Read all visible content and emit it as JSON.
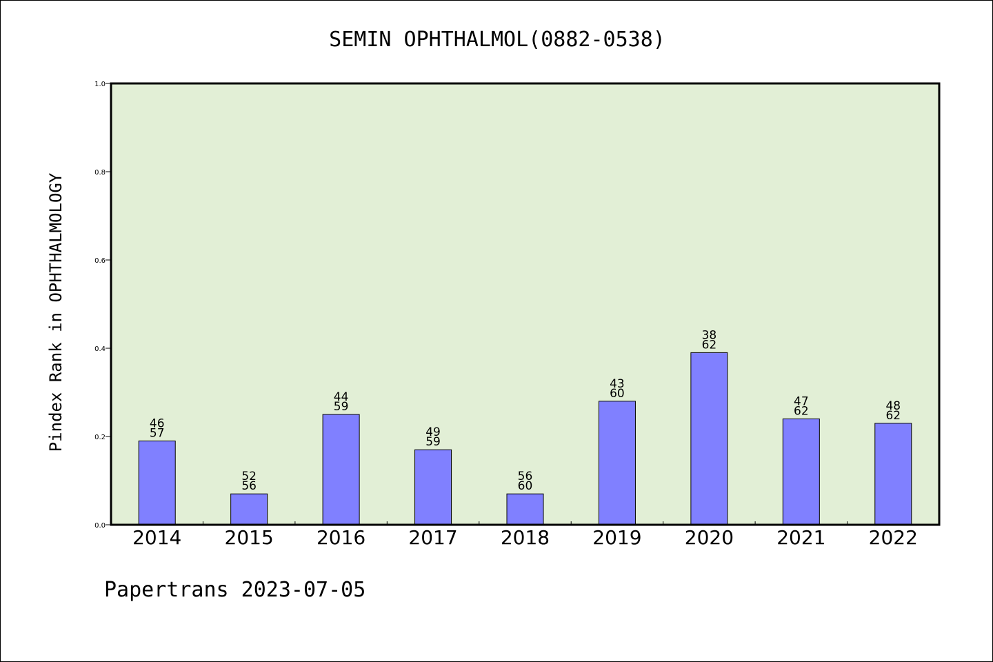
{
  "chart_data": {
    "type": "bar",
    "title": "SEMIN OPHTHALMOL(0882-0538)",
    "ylabel": "Pindex Rank in OPHTHALMOLOGY",
    "xlabel": "",
    "ylim": [
      0,
      1.0
    ],
    "yticks": [
      "0.0",
      "0.2",
      "0.4",
      "0.6",
      "0.8",
      "1.0"
    ],
    "categories": [
      "2014",
      "2015",
      "2016",
      "2017",
      "2018",
      "2019",
      "2020",
      "2021",
      "2022"
    ],
    "values": [
      0.19,
      0.07,
      0.25,
      0.17,
      0.07,
      0.28,
      0.39,
      0.24,
      0.23
    ],
    "labels_top": [
      "46",
      "52",
      "44",
      "49",
      "56",
      "43",
      "38",
      "47",
      "48"
    ],
    "labels_bottom": [
      "57",
      "56",
      "59",
      "59",
      "60",
      "60",
      "62",
      "62",
      "62"
    ],
    "grid": false,
    "colors": {
      "plot_background": "#e2efd6",
      "bar_fill": "#8080ff",
      "bar_stroke": "#000000"
    }
  },
  "footer": "Papertrans 2023-07-05"
}
